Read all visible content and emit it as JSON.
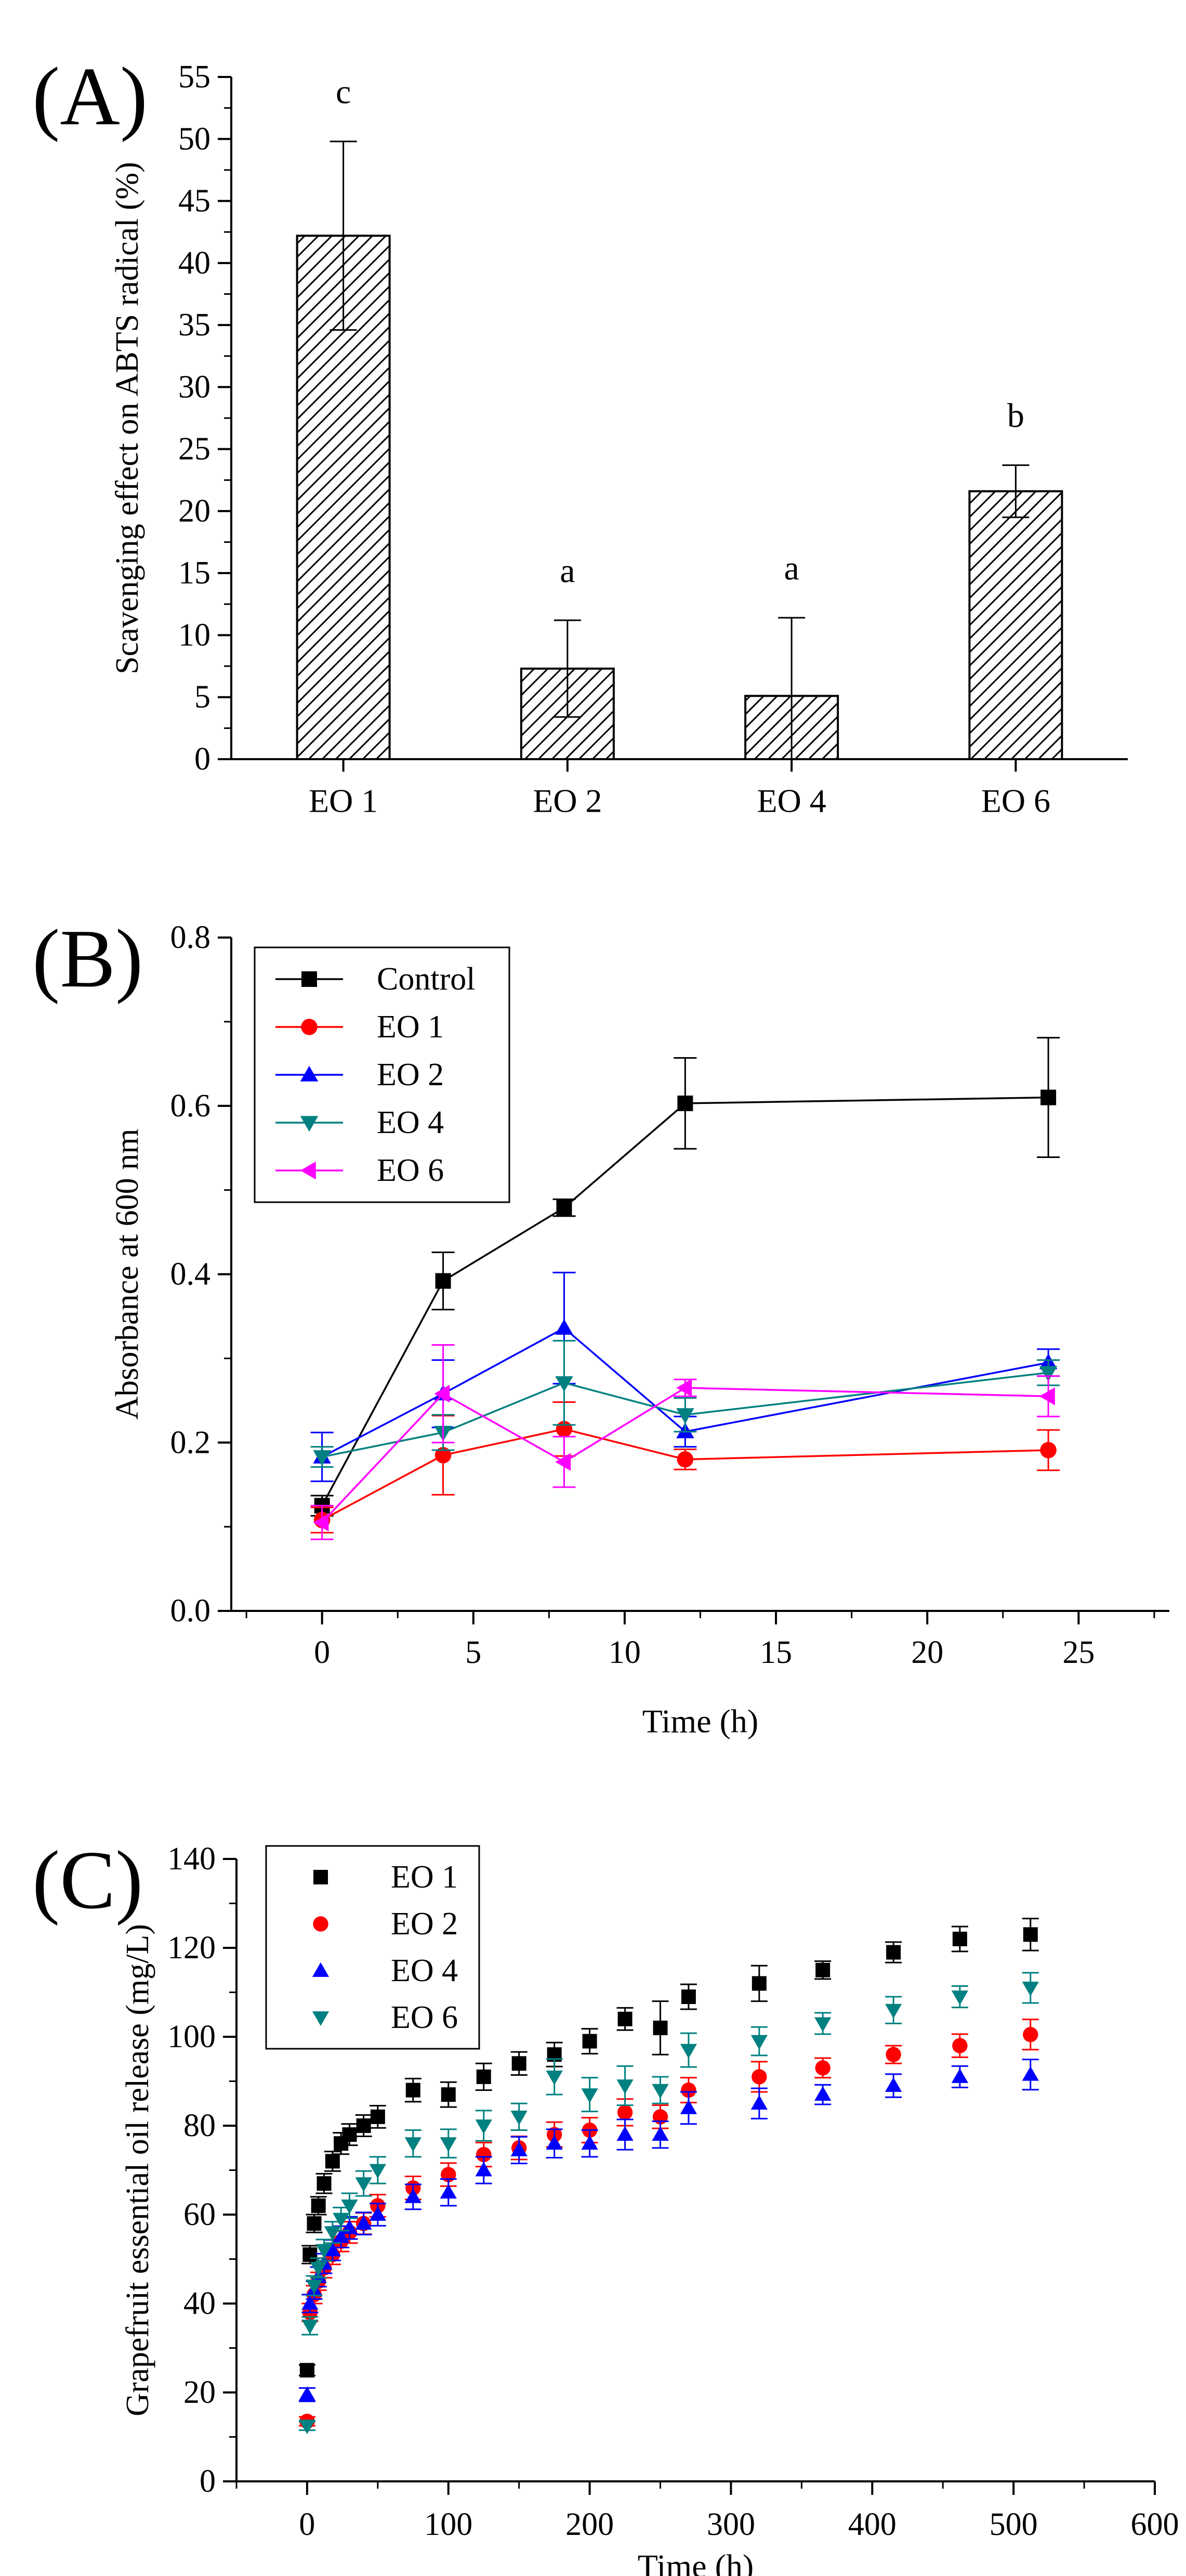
{
  "chart_data": [
    {
      "panel_label": "(A)",
      "type": "bar",
      "ylabel": "Scavenging effect on ABTS radical (%)",
      "xlabel": "",
      "ylim": [
        0,
        55
      ],
      "yticks": [
        "0",
        "5",
        "10",
        "15",
        "20",
        "25",
        "30",
        "35",
        "40",
        "45",
        "50",
        "55"
      ],
      "categories": [
        "EO 1",
        "EO 2",
        "EO 4",
        "EO 6"
      ],
      "values": [
        42.2,
        7.3,
        5.1,
        21.6
      ],
      "errors": [
        7.6,
        3.9,
        6.3,
        2.1
      ],
      "annotations": [
        "c",
        "a",
        "a",
        "b"
      ]
    },
    {
      "panel_label": "(B)",
      "type": "line",
      "ylabel": "Absorbance at 600 nm",
      "xlabel": "Time (h)",
      "xlim": [
        -3,
        28
      ],
      "ylim": [
        0,
        0.8
      ],
      "xticks": [
        "0",
        "5",
        "10",
        "15",
        "20",
        "25"
      ],
      "yticks": [
        "0.0",
        "0.2",
        "0.4",
        "0.6",
        "0.8"
      ],
      "legend_position": "top-left",
      "x": [
        0,
        4,
        8,
        12,
        24
      ],
      "series": [
        {
          "name": "Control",
          "color": "#000000",
          "marker": "square",
          "values": [
            0.125,
            0.392,
            0.479,
            0.603,
            0.61
          ],
          "errors": [
            0.012,
            0.034,
            0.01,
            0.054,
            0.071
          ]
        },
        {
          "name": "EO 1",
          "color": "#ff0000",
          "marker": "circle",
          "values": [
            0.108,
            0.185,
            0.216,
            0.18,
            0.191
          ],
          "errors": [
            0.015,
            0.047,
            0.032,
            0.012,
            0.024
          ]
        },
        {
          "name": "EO 2",
          "color": "#0000ff",
          "marker": "triangle-up",
          "values": [
            0.183,
            0.258,
            0.336,
            0.213,
            0.295
          ],
          "errors": [
            0.029,
            0.04,
            0.066,
            0.018,
            0.016
          ]
        },
        {
          "name": "EO 4",
          "color": "#008080",
          "marker": "triangle-down",
          "values": [
            0.183,
            0.212,
            0.271,
            0.233,
            0.283
          ],
          "errors": [
            0.012,
            0.021,
            0.05,
            0.02,
            0.015
          ]
        },
        {
          "name": "EO 6",
          "color": "#ff00ff",
          "marker": "triangle-left",
          "values": [
            0.105,
            0.258,
            0.177,
            0.265,
            0.255
          ],
          "errors": [
            0.02,
            0.058,
            0.03,
            0.01,
            0.024
          ]
        }
      ]
    },
    {
      "panel_label": "(C)",
      "type": "scatter",
      "ylabel": "Grapefruit essential oil release (mg/L)",
      "xlabel": "Time (h)",
      "xlim": [
        -50,
        600
      ],
      "ylim": [
        0,
        140
      ],
      "xticks": [
        "0",
        "100",
        "200",
        "300",
        "400",
        "500",
        "600"
      ],
      "yticks": [
        "0",
        "20",
        "40",
        "60",
        "80",
        "100",
        "120",
        "140"
      ],
      "legend_position": "top-left",
      "x": [
        0,
        2,
        5,
        8,
        12,
        18,
        24,
        30,
        40,
        50,
        75,
        100,
        125,
        150,
        175,
        200,
        225,
        250,
        270,
        320,
        365,
        415,
        462,
        512
      ],
      "series": [
        {
          "name": "EO 1",
          "color": "#000000",
          "marker": "square",
          "values": [
            25,
            51,
            58,
            62,
            67,
            72,
            76,
            78,
            80,
            82,
            88,
            87,
            91,
            94,
            96,
            99,
            104,
            102,
            109,
            112,
            115,
            119,
            122,
            123
          ],
          "errors": [
            1.2,
            2,
            2,
            2,
            2.2,
            2.2,
            2.4,
            2.4,
            2.4,
            2.5,
            2.6,
            2.8,
            3,
            2.6,
            2.7,
            2.8,
            2.5,
            6,
            2.8,
            4,
            2,
            2.3,
            2.8,
            3.6
          ]
        },
        {
          "name": "EO 2",
          "color": "#ff0000",
          "marker": "circle",
          "values": [
            13.5,
            38,
            42,
            45,
            48,
            51,
            54,
            56,
            58,
            62,
            66,
            69,
            73.5,
            75,
            78,
            79,
            83,
            82,
            88,
            91,
            93,
            96,
            98,
            100.5
          ],
          "errors": [
            1,
            2,
            2,
            2,
            2.2,
            2.2,
            2.3,
            2.4,
            2.4,
            2.5,
            2.6,
            2.6,
            2.7,
            2.6,
            2.8,
            2.8,
            3,
            2.6,
            2.8,
            3.4,
            2.2,
            2,
            2.6,
            3.4
          ]
        },
        {
          "name": "EO 4",
          "color": "#0000ff",
          "marker": "triangle-up",
          "values": [
            19.5,
            40,
            43,
            46,
            49,
            52,
            55,
            57,
            58,
            60,
            64,
            65,
            70,
            74.5,
            76,
            76,
            78,
            78,
            84,
            85,
            87,
            89,
            91,
            91.5
          ],
          "errors": [
            1.5,
            2,
            2,
            2.2,
            2.2,
            2.3,
            2.4,
            2.5,
            2.5,
            2.5,
            2.8,
            3,
            3,
            3,
            3.2,
            3,
            3.4,
            3,
            3.6,
            3.4,
            2.2,
            2.6,
            2.4,
            3.4
          ]
        },
        {
          "name": "EO 6",
          "color": "#008080",
          "marker": "triangle-down",
          "values": [
            12.5,
            35,
            44,
            48,
            52,
            56,
            59,
            62,
            67,
            70,
            76,
            76,
            80,
            82,
            91,
            87,
            89,
            88,
            97,
            99,
            103,
            106,
            109,
            111
          ],
          "errors": [
            1,
            2,
            2.2,
            2.2,
            2.4,
            2.4,
            2.6,
            2.8,
            2.8,
            3,
            3,
            3.2,
            3.4,
            3,
            4,
            3.8,
            4.4,
            3,
            3.8,
            3.2,
            2.4,
            3,
            2.4,
            3.4
          ]
        }
      ]
    }
  ]
}
